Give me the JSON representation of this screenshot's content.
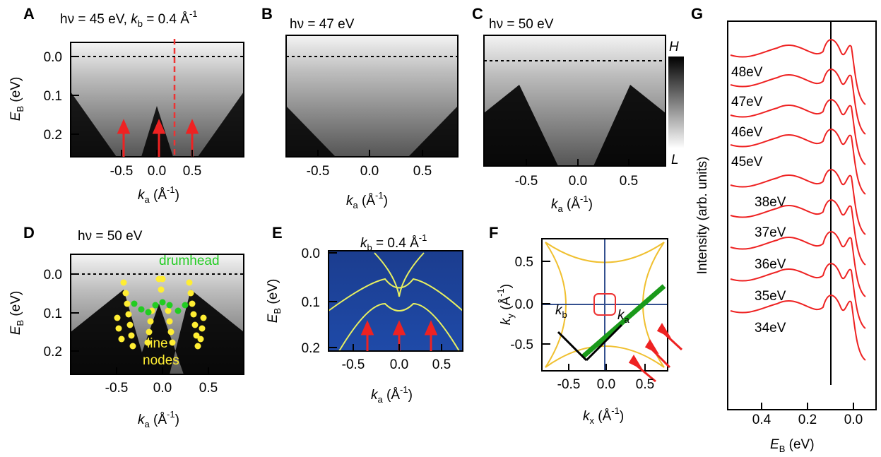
{
  "panels": [
    {
      "letter": "A",
      "title": [
        "hν = 45 eV, ",
        "k",
        "b",
        " = 0.4 Å",
        "-1"
      ],
      "ylabel": [
        "E",
        "B",
        " (eV)"
      ],
      "xlabel": [
        "k",
        "a",
        " (Å",
        "-1",
        ")"
      ],
      "yticks": [
        "0.0",
        "0.1",
        "0.2"
      ],
      "xticks": [
        "-0.5",
        "0.0",
        "0.5"
      ]
    },
    {
      "letter": "B",
      "title": "hν = 47 eV",
      "xlabel": [
        "k",
        "a",
        " (Å",
        "-1",
        ")"
      ],
      "xticks": [
        "-0.5",
        "0.0",
        "0.5"
      ]
    },
    {
      "letter": "C",
      "title": "hν = 50 eV",
      "xlabel": [
        "k",
        "a",
        " (Å",
        "-1",
        ")"
      ],
      "xticks": [
        "-0.5",
        "0.0",
        "0.5"
      ],
      "colorbar": [
        "H",
        "L"
      ]
    },
    {
      "letter": "D",
      "title": "hν = 50 eV",
      "ylabel": [
        "E",
        "B",
        " (eV)"
      ],
      "xlabel": [
        "k",
        "a",
        " (Å",
        "-1",
        ")"
      ],
      "yticks": [
        "0.0",
        "0.1",
        "0.2"
      ],
      "xticks": [
        "-0.5",
        "0.0",
        "0.5"
      ],
      "annotations": [
        "drumhead",
        "line",
        "nodes"
      ]
    },
    {
      "letter": "E",
      "title": [
        "k",
        "b",
        " = 0.4 Å",
        "-1"
      ],
      "ylabel": [
        "E",
        "B",
        " (eV)"
      ],
      "xlabel": [
        "k",
        "a",
        " (Å",
        "-1",
        ")"
      ],
      "yticks": [
        "0.0",
        "0.1",
        "0.2"
      ],
      "xticks": [
        "-0.5",
        "0.0",
        "0.5"
      ]
    },
    {
      "letter": "F",
      "ylabel": [
        "k",
        "y",
        " (Å",
        "-1",
        ")"
      ],
      "xlabel": [
        "k",
        "x",
        " (Å",
        "-1",
        ")"
      ],
      "yticks": [
        "0.5",
        "0.0",
        "-0.5"
      ],
      "xticks": [
        "-0.5",
        "0.0",
        "0.5"
      ],
      "vectors": [
        [
          "k",
          "b"
        ],
        [
          "k",
          "a"
        ]
      ]
    },
    {
      "letter": "G",
      "ylabel": "Intensity (arb. units)",
      "xlabel": [
        "E",
        "B",
        " (eV)"
      ],
      "xticks": [
        "0.4",
        "0.2",
        "0.0"
      ],
      "curves": [
        "48eV",
        "47eV",
        "46eV",
        "45eV",
        "38eV",
        "37eV",
        "36eV",
        "35eV",
        "34eV"
      ]
    }
  ]
}
